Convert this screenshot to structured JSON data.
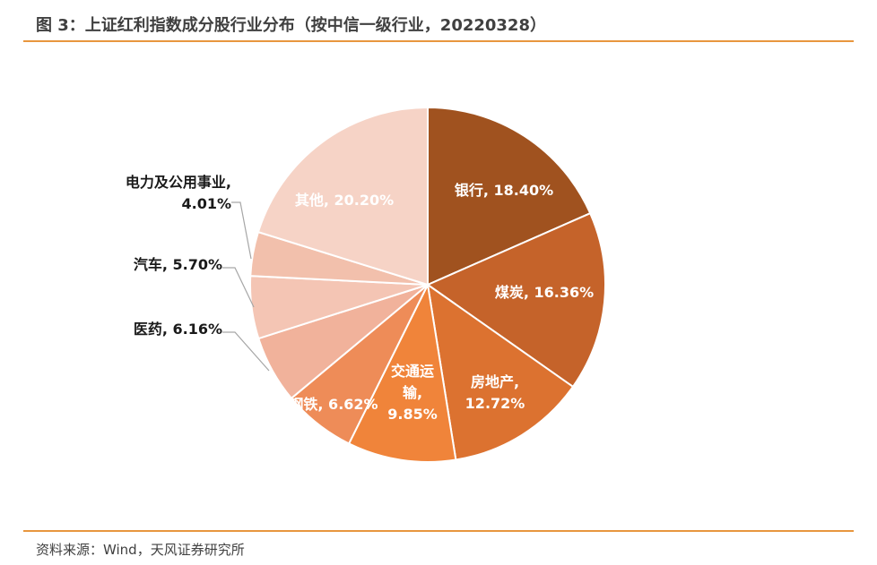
{
  "title": "图 3：上证红利指数成分股行业分布（按中信一级行业，20220328）",
  "source": "资料来源：Wind，天风证券研究所",
  "colors": {
    "rule": "#e8963e",
    "title": "#404040",
    "label_inside": "#ffffff",
    "label_outside": "#1a1a1a",
    "leader": "#a6a6a6"
  },
  "chart_data": {
    "type": "pie",
    "title": "",
    "slices": [
      {
        "name": "银行",
        "value": 18.4,
        "label_lines": [
          "银行, 18.40%"
        ],
        "color": "#a0521f",
        "label_inside": true
      },
      {
        "name": "煤炭",
        "value": 16.36,
        "label_lines": [
          "煤炭, 16.36%"
        ],
        "color": "#c5632a",
        "label_inside": true
      },
      {
        "name": "房地产",
        "value": 12.72,
        "label_lines": [
          "房地产,",
          "12.72%"
        ],
        "color": "#dc7230",
        "label_inside": true
      },
      {
        "name": "交通运输",
        "value": 9.85,
        "label_lines": [
          "交通运",
          "输,",
          "9.85%"
        ],
        "color": "#f0843a",
        "label_inside": true
      },
      {
        "name": "钢铁",
        "value": 6.62,
        "label_lines": [
          "钢铁, 6.62%"
        ],
        "color": "#ee8c58",
        "label_inside": true
      },
      {
        "name": "医药",
        "value": 6.16,
        "label_lines": [
          "医药, 6.16%"
        ],
        "color": "#f1b29b",
        "label_inside": false
      },
      {
        "name": "汽车",
        "value": 5.7,
        "label_lines": [
          "汽车, 5.70%"
        ],
        "color": "#f4c5b4",
        "label_inside": false
      },
      {
        "name": "电力及公用事业",
        "value": 4.01,
        "label_lines": [
          "电力及公用事业,",
          "4.01%"
        ],
        "color": "#f2c0ac",
        "label_inside": false
      },
      {
        "name": "其他",
        "value": 20.2,
        "label_lines": [
          "其他, 20.20%"
        ],
        "color": "#f6d3c6",
        "label_inside": true
      }
    ]
  }
}
